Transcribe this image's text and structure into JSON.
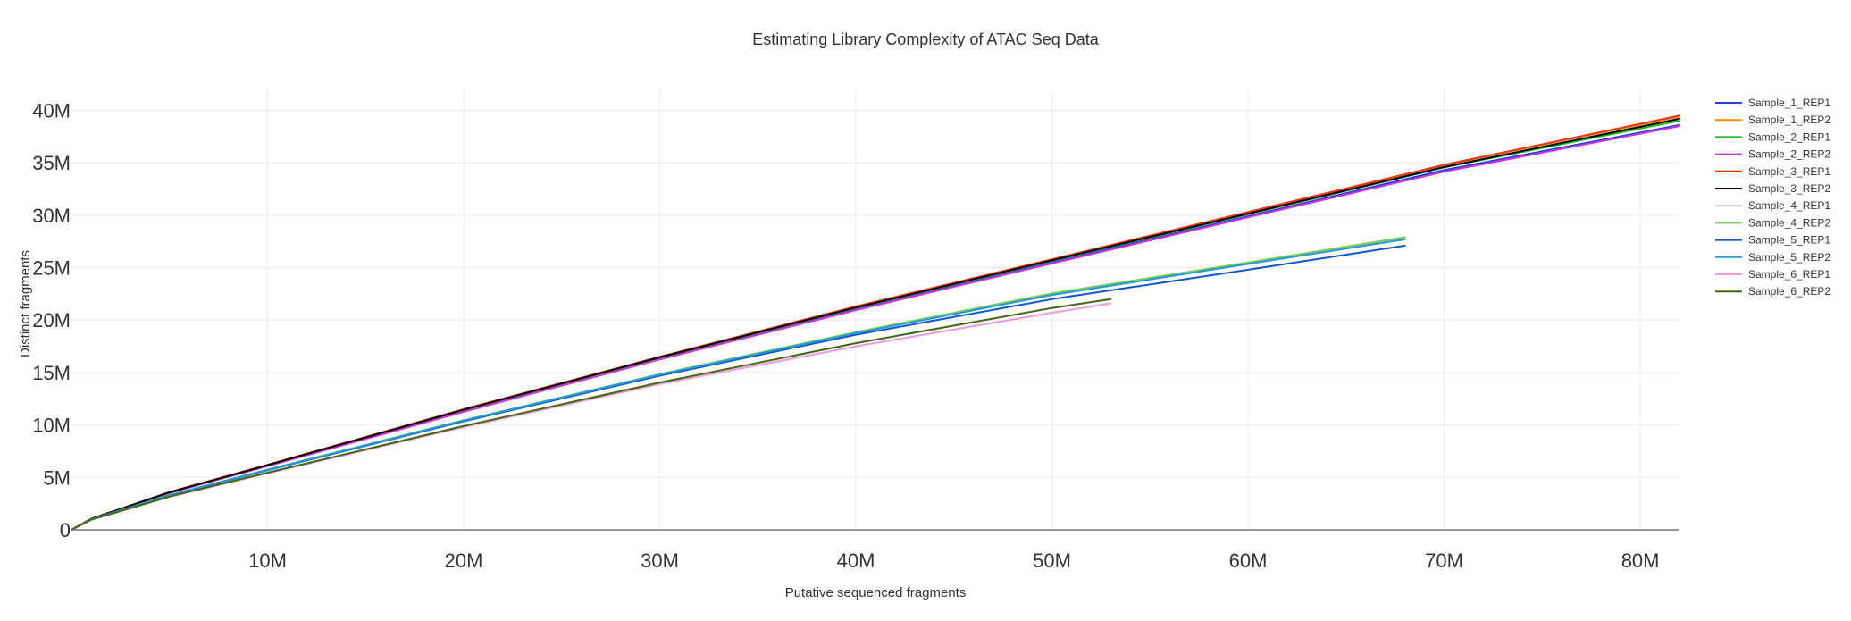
{
  "chart_data": {
    "type": "line",
    "title": "Estimating Library Complexity of ATAC Seq Data",
    "xlabel": "Putative sequenced fragments",
    "ylabel": "Distinct fragments",
    "xlim": [
      0,
      82000000
    ],
    "ylim": [
      0,
      42000000
    ],
    "grid": true,
    "legend": "right",
    "x_ticks": [
      10000000,
      20000000,
      30000000,
      40000000,
      50000000,
      60000000,
      70000000,
      80000000
    ],
    "x_tick_labels": [
      "10M",
      "20M",
      "30M",
      "40M",
      "50M",
      "60M",
      "70M",
      "80M"
    ],
    "y_ticks": [
      0,
      5000000,
      10000000,
      15000000,
      20000000,
      25000000,
      30000000,
      35000000,
      40000000
    ],
    "y_tick_labels": [
      "0",
      "5M",
      "10M",
      "15M",
      "20M",
      "25M",
      "30M",
      "35M",
      "40M"
    ],
    "series": [
      {
        "name": "Sample_1_REP1",
        "color": "#1f3fe0",
        "x": [
          0,
          1000000,
          5000000,
          10000000,
          20000000,
          30000000,
          40000000,
          50000000,
          60000000,
          70000000,
          82000000
        ],
        "y": [
          0,
          1050000,
          3550000,
          6100000,
          11300000,
          16300000,
          21000000,
          25500000,
          29900000,
          34300000,
          38600000
        ]
      },
      {
        "name": "Sample_1_REP2",
        "color": "#ff8c00",
        "x": [
          0,
          1000000,
          5000000,
          10000000,
          20000000,
          30000000,
          40000000,
          50000000,
          60000000,
          70000000,
          82000000
        ],
        "y": [
          0,
          1050000,
          3600000,
          6200000,
          11500000,
          16500000,
          21300000,
          25800000,
          30300000,
          34800000,
          39400000
        ]
      },
      {
        "name": "Sample_2_REP1",
        "color": "#22bb22",
        "x": [
          0,
          1000000,
          5000000,
          10000000,
          20000000,
          30000000,
          40000000,
          50000000,
          60000000,
          70000000,
          82000000
        ],
        "y": [
          0,
          1050000,
          3550000,
          6150000,
          11400000,
          16400000,
          21150000,
          25650000,
          30100000,
          34550000,
          39000000
        ]
      },
      {
        "name": "Sample_2_REP2",
        "color": "#cc33dd",
        "x": [
          0,
          1000000,
          5000000,
          10000000,
          20000000,
          30000000,
          40000000,
          50000000,
          60000000,
          70000000,
          82000000
        ],
        "y": [
          0,
          1050000,
          3530000,
          6080000,
          11250000,
          16250000,
          20950000,
          25400000,
          29800000,
          34150000,
          38500000
        ]
      },
      {
        "name": "Sample_3_REP1",
        "color": "#ee3311",
        "x": [
          0,
          1000000,
          5000000,
          10000000,
          20000000,
          30000000,
          40000000,
          50000000,
          60000000,
          70000000,
          82000000
        ],
        "y": [
          0,
          1050000,
          3600000,
          6200000,
          11500000,
          16500000,
          21300000,
          25800000,
          30300000,
          34800000,
          39500000
        ]
      },
      {
        "name": "Sample_3_REP2",
        "color": "#000000",
        "x": [
          0,
          1000000,
          5000000,
          10000000,
          20000000,
          30000000,
          40000000,
          50000000,
          60000000,
          70000000,
          82000000
        ],
        "y": [
          0,
          1050000,
          3580000,
          6180000,
          11450000,
          16450000,
          21200000,
          25700000,
          30150000,
          34600000,
          39200000
        ]
      },
      {
        "name": "Sample_4_REP1",
        "color": "#c8c8d0",
        "x": [
          0,
          1000000,
          5000000,
          10000000,
          20000000,
          30000000,
          40000000,
          50000000,
          60000000,
          68000000
        ],
        "y": [
          0,
          1000000,
          3300000,
          5700000,
          10400000,
          14800000,
          18800000,
          22500000,
          25400000,
          27800000
        ]
      },
      {
        "name": "Sample_4_REP2",
        "color": "#77cc55",
        "x": [
          0,
          1000000,
          5000000,
          10000000,
          20000000,
          30000000,
          40000000,
          50000000,
          60000000,
          68000000
        ],
        "y": [
          0,
          1000000,
          3320000,
          5750000,
          10450000,
          14850000,
          18850000,
          22550000,
          25500000,
          27900000
        ]
      },
      {
        "name": "Sample_5_REP1",
        "color": "#1155cc",
        "x": [
          0,
          1000000,
          5000000,
          10000000,
          20000000,
          30000000,
          40000000,
          50000000,
          60000000,
          68000000
        ],
        "y": [
          0,
          1000000,
          3300000,
          5680000,
          10350000,
          14700000,
          18600000,
          22000000,
          24800000,
          27100000
        ]
      },
      {
        "name": "Sample_5_REP2",
        "color": "#2299dd",
        "x": [
          0,
          1000000,
          5000000,
          10000000,
          20000000,
          30000000,
          40000000,
          50000000,
          60000000,
          68000000
        ],
        "y": [
          0,
          1000000,
          3310000,
          5720000,
          10420000,
          14800000,
          18750000,
          22400000,
          25350000,
          27700000
        ]
      },
      {
        "name": "Sample_6_REP1",
        "color": "#ee99dd",
        "x": [
          0,
          1000000,
          5000000,
          10000000,
          20000000,
          30000000,
          40000000,
          50000000,
          53000000
        ],
        "y": [
          0,
          950000,
          3150000,
          5400000,
          9800000,
          13900000,
          17500000,
          20700000,
          21600000
        ]
      },
      {
        "name": "Sample_6_REP2",
        "color": "#446611",
        "x": [
          0,
          1000000,
          5000000,
          10000000,
          20000000,
          30000000,
          40000000,
          50000000,
          53000000
        ],
        "y": [
          0,
          960000,
          3180000,
          5450000,
          9900000,
          14050000,
          17800000,
          21150000,
          22000000
        ]
      }
    ]
  }
}
